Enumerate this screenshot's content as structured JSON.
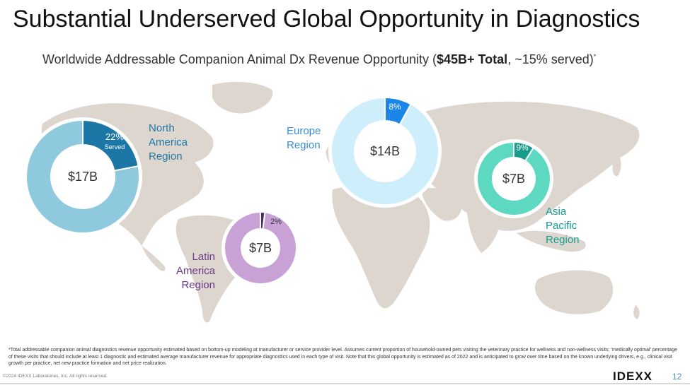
{
  "slide": {
    "title": "Substantial Underserved Global Opportunity in Diagnostics",
    "subtitle_pre": "Worldwide Addressable Companion Animal Dx Revenue Opportunity (",
    "subtitle_bold": "$45B+ Total",
    "subtitle_post": ", ~15% served)",
    "subtitle_mark": "*",
    "footnote": "*Total addressable companion animal diagnostics revenue opportunity estimated based on bottom-up modeling at manufacturer or service provider level. Assumes current proportion of household-owned pets visiting the veterinary practice for wellness and non-wellness visits; ‘medically optimal’ percentage of these visits that should include at least 1 diagnostic and estimated average manufacturer revenue for appropriate diagnostics used in each type of visit. Note that this global opportunity is estimated as of 2022 and is anticipated to grow over time based on the known underlying drivers, e.g., clinical visit growth per practice, net new practice formation and net price realization.",
    "copyright": "©2024 IDEXX Laboratories, Inc. All rights reserved.",
    "logo": "IDEXX",
    "page_number": "12"
  },
  "colors": {
    "map": "#ddd6cf",
    "north_america": {
      "served": "#1d77a6",
      "unserved": "#8ec9de"
    },
    "europe": {
      "served": "#1b86e6",
      "unserved": "#cdeefa"
    },
    "asia_pacific": {
      "served": "#159c8c",
      "unserved": "#5dd9c1"
    },
    "latin_america": {
      "served": "#4d2968",
      "unserved": "#c8a2d6"
    },
    "region_text": {
      "north_america": "#1d77a6",
      "europe": "#3a8ed4",
      "asia_pacific": "#159c8c",
      "latin_america": "#6b3a88"
    }
  },
  "chart_data": {
    "type": "pie",
    "variant": "donut",
    "title": "Worldwide Addressable Companion Animal Dx Revenue Opportunity",
    "total_label": "$45B+ Total",
    "served_total_label": "~15% served",
    "regions": [
      {
        "id": "north_america",
        "name": "North America Region",
        "name_lines": [
          "North",
          "America",
          "Region"
        ],
        "value_label": "$17B",
        "value_billions": 17,
        "served_pct": 22,
        "served_label": "22%",
        "served_caption": "Served"
      },
      {
        "id": "europe",
        "name": "Europe Region",
        "name_lines": [
          "Europe",
          "Region"
        ],
        "value_label": "$14B",
        "value_billions": 14,
        "served_pct": 8,
        "served_label": "8%"
      },
      {
        "id": "asia_pacific",
        "name": "Asia Pacific Region",
        "name_lines": [
          "Asia",
          "Pacific",
          "Region"
        ],
        "value_label": "$7B",
        "value_billions": 7,
        "served_pct": 9,
        "served_label": "9%"
      },
      {
        "id": "latin_america",
        "name": "Latin America Region",
        "name_lines": [
          "Latin",
          "America",
          "Region"
        ],
        "value_label": "$7B",
        "value_billions": 7,
        "served_pct": 2,
        "served_label": "2%"
      }
    ]
  }
}
